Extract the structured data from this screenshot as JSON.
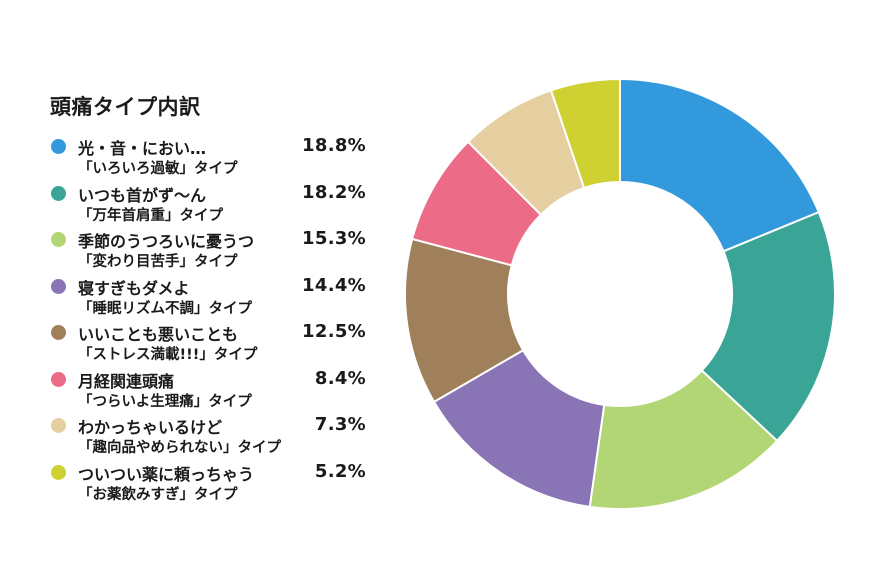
{
  "chart_data": {
    "type": "pie",
    "title": "頭痛タイプ内訳",
    "colors": [
      "#3399dd",
      "#3aa596",
      "#b2d575",
      "#8974b5",
      "#a0805a",
      "#ec6c88",
      "#e5cfa0",
      "#cfd132"
    ],
    "slices": [
      {
        "label_line1": "光・音・におい…",
        "label_line2": "「いろいろ過敏」タイプ",
        "value": 18.8,
        "display": "18.8%"
      },
      {
        "label_line1": "いつも首がず〜ん",
        "label_line2": "「万年首肩重」タイプ",
        "value": 18.2,
        "display": "18.2%"
      },
      {
        "label_line1": "季節のうつろいに憂うつ",
        "label_line2": "「変わり目苦手」タイプ",
        "value": 15.3,
        "display": "15.3%"
      },
      {
        "label_line1": "寝すぎもダメよ",
        "label_line2": "「睡眠リズム不調」タイプ",
        "value": 14.4,
        "display": "14.4%"
      },
      {
        "label_line1": "いいことも悪いことも",
        "label_line2": "「ストレス満載!!!」タイプ",
        "value": 12.5,
        "display": "12.5%"
      },
      {
        "label_line1": "月経関連頭痛",
        "label_line2": "「つらいよ生理痛」タイプ",
        "value": 8.4,
        "display": "8.4%"
      },
      {
        "label_line1": "わかっちゃいるけど",
        "label_line2": "「趣向品やめられない」タイプ",
        "value": 7.3,
        "display": "7.3%"
      },
      {
        "label_line1": "ついつい薬に頼っちゃう",
        "label_line2": "「お薬飲みすぎ」タイプ",
        "value": 5.2,
        "display": "5.2%"
      }
    ]
  }
}
